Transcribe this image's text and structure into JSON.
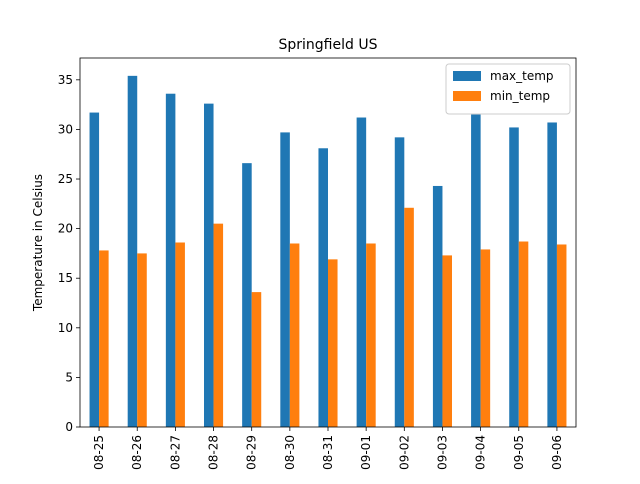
{
  "chart_data": {
    "type": "bar",
    "title": "Springfield US",
    "xlabel": "",
    "ylabel": "Temperature in Celsius",
    "categories": [
      "08-25",
      "08-26",
      "08-27",
      "08-28",
      "08-29",
      "08-30",
      "08-31",
      "09-01",
      "09-02",
      "09-03",
      "09-04",
      "09-05",
      "09-06"
    ],
    "series": [
      {
        "name": "max_temp",
        "color": "#1f77b4",
        "values": [
          31.7,
          35.4,
          33.6,
          32.6,
          26.6,
          29.7,
          28.1,
          31.2,
          29.2,
          24.3,
          31.5,
          30.2,
          30.7
        ]
      },
      {
        "name": "min_temp",
        "color": "#ff7f0e",
        "values": [
          17.8,
          17.5,
          18.6,
          20.5,
          13.6,
          18.5,
          16.9,
          18.5,
          22.1,
          17.3,
          17.9,
          18.7,
          18.4
        ]
      }
    ],
    "yticks": [
      0,
      5,
      10,
      15,
      20,
      25,
      30,
      35
    ],
    "ylim": [
      0,
      37.2
    ],
    "grid": false,
    "legend_position": "top-right"
  }
}
